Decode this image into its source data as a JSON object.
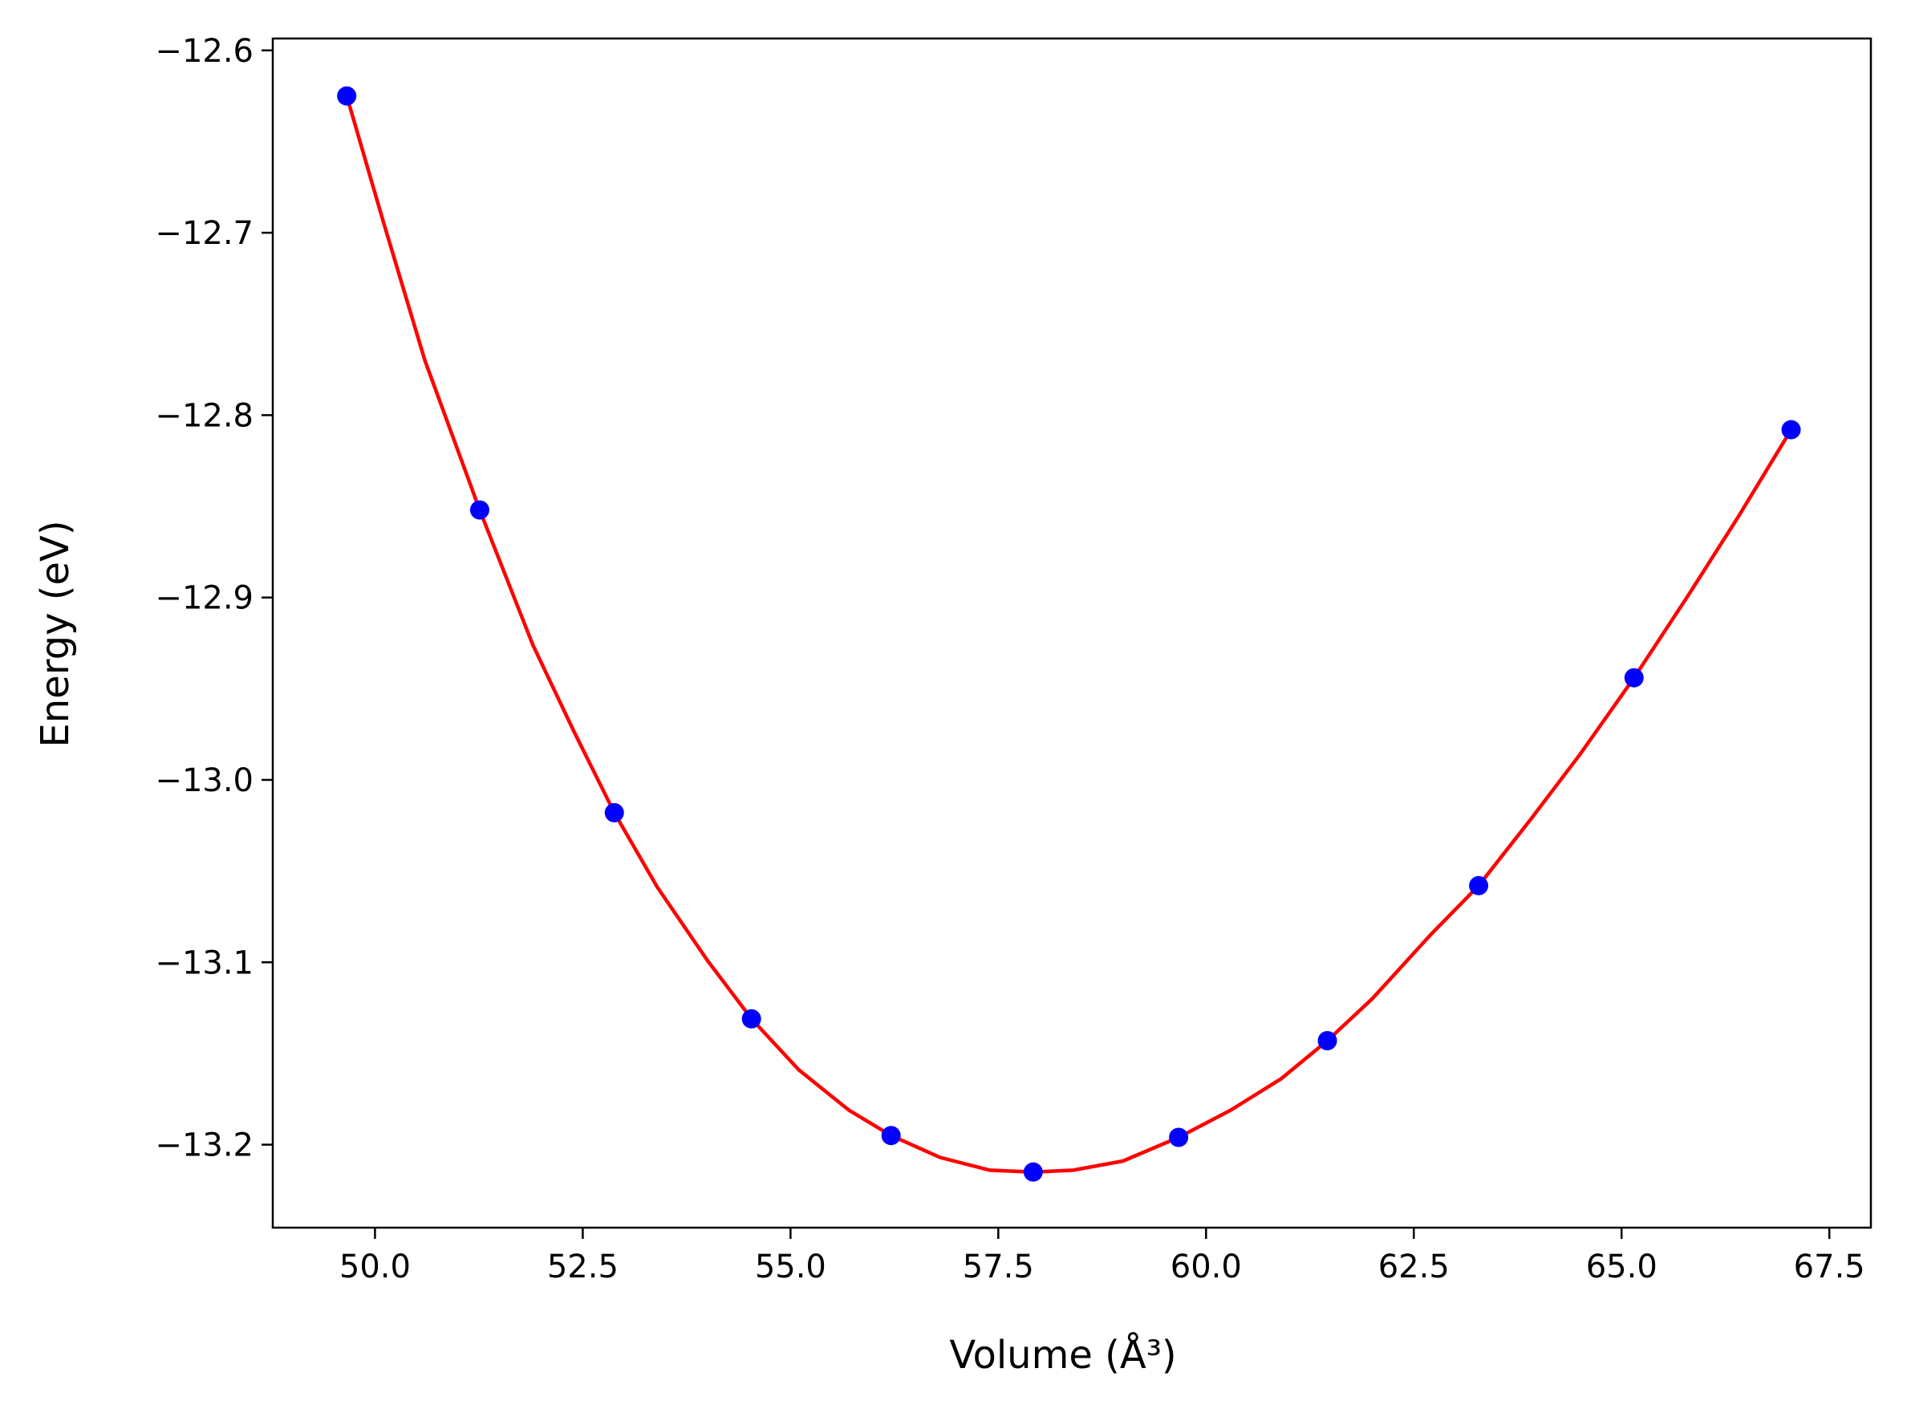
{
  "chart_data": {
    "type": "scatter",
    "title": "",
    "xlabel": "Volume (Å³)",
    "ylabel": "Energy (eV)",
    "xlim": [
      48.77,
      68.0
    ],
    "ylim": [
      -13.2455,
      -12.5935
    ],
    "xticks": [
      50.0,
      52.5,
      55.0,
      57.5,
      60.0,
      62.5,
      65.0,
      67.5
    ],
    "xtick_labels": [
      "50.0",
      "52.5",
      "55.0",
      "57.5",
      "60.0",
      "62.5",
      "65.0",
      "67.5"
    ],
    "yticks": [
      -12.6,
      -12.7,
      -12.8,
      -12.9,
      -13.0,
      -13.1,
      -13.2
    ],
    "ytick_labels": [
      "−12.6",
      "−12.7",
      "−12.8",
      "−12.9",
      "−13.0",
      "−13.1",
      "−13.2"
    ],
    "grid": false,
    "series": [
      {
        "kind": "points",
        "color": "#0000ff",
        "x": [
          49.66,
          51.26,
          52.88,
          54.53,
          56.21,
          57.92,
          59.67,
          61.46,
          63.28,
          65.15,
          67.04
        ],
        "y": [
          -12.625,
          -12.852,
          -13.018,
          -13.131,
          -13.195,
          -13.215,
          -13.196,
          -13.143,
          -13.058,
          -12.944,
          -12.808
        ]
      },
      {
        "kind": "fit-curve",
        "color": "#ff0000",
        "x": [
          49.66,
          50.1,
          50.6,
          51.26,
          51.9,
          52.4,
          52.88,
          53.4,
          54.0,
          54.53,
          55.1,
          55.7,
          56.21,
          56.8,
          57.4,
          57.92,
          58.4,
          59.0,
          59.67,
          60.3,
          60.9,
          61.46,
          62.0,
          62.7,
          63.28,
          63.9,
          64.5,
          65.15,
          65.8,
          66.4,
          67.04
        ],
        "y": [
          -12.625,
          -12.694,
          -12.77,
          -12.852,
          -12.926,
          -12.974,
          -13.018,
          -13.059,
          -13.099,
          -13.131,
          -13.159,
          -13.181,
          -13.195,
          -13.207,
          -13.214,
          -13.215,
          -13.214,
          -13.209,
          -13.196,
          -13.181,
          -13.164,
          -13.143,
          -13.12,
          -13.085,
          -13.058,
          -13.022,
          -12.986,
          -12.944,
          -12.899,
          -12.856,
          -12.808
        ]
      }
    ]
  }
}
